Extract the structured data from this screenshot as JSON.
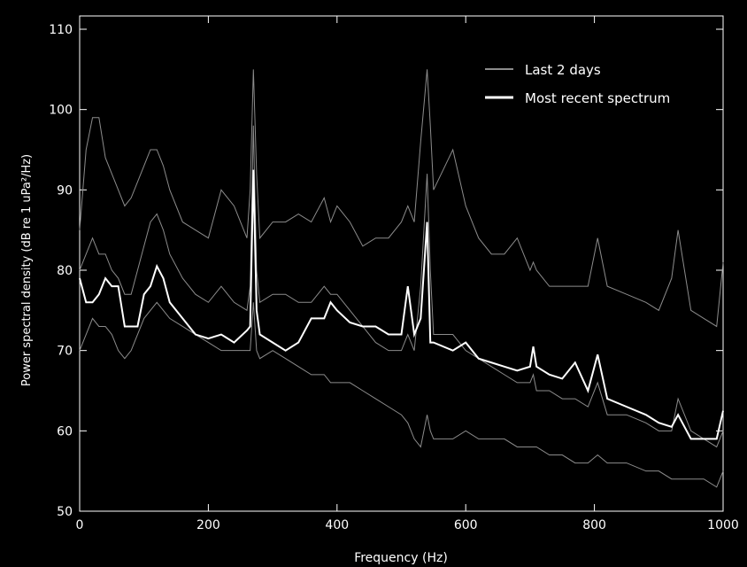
{
  "chart_data": {
    "type": "line",
    "x_label": "Frequency (Hz)",
    "y_label": "Power spectral density (dB re 1 uPa²/Hz)",
    "xlim": [
      0,
      1000
    ],
    "ylim": [
      50,
      110
    ],
    "xticks": [
      0,
      200,
      400,
      600,
      800,
      1000
    ],
    "yticks": [
      50,
      60,
      70,
      80,
      90,
      100,
      110
    ],
    "legend": "upper right",
    "x": [
      0,
      10,
      20,
      30,
      40,
      50,
      60,
      70,
      80,
      90,
      100,
      110,
      120,
      130,
      140,
      160,
      180,
      200,
      220,
      240,
      260,
      265,
      270,
      275,
      280,
      300,
      320,
      340,
      360,
      380,
      390,
      400,
      420,
      440,
      460,
      480,
      500,
      510,
      520,
      530,
      540,
      545,
      550,
      580,
      600,
      620,
      640,
      660,
      680,
      700,
      705,
      710,
      730,
      750,
      770,
      790,
      805,
      820,
      850,
      880,
      900,
      920,
      930,
      950,
      970,
      990,
      1000
    ],
    "series": [
      {
        "name": "Last 2 days",
        "color": "#8c8c8c",
        "width": 1,
        "values": [
          85,
          95,
          99,
          99,
          94,
          92,
          90,
          88,
          89,
          91,
          93,
          95,
          95,
          93,
          90,
          86,
          85,
          84,
          90,
          88,
          84,
          90,
          105,
          92,
          84,
          86,
          86,
          87,
          86,
          89,
          86,
          88,
          86,
          83,
          84,
          84,
          86,
          88,
          86,
          96,
          105,
          98,
          90,
          95,
          88,
          84,
          82,
          82,
          84,
          80,
          81,
          80,
          78,
          78,
          78,
          78,
          84,
          78,
          77,
          76,
          75,
          79,
          85,
          75,
          74,
          73,
          81
        ]
      },
      {
        "name": "Last 2 days",
        "color": "#8c8c8c",
        "width": 1,
        "values": [
          70,
          72,
          74,
          73,
          73,
          72,
          70,
          69,
          70,
          72,
          74,
          75,
          76,
          75,
          74,
          73,
          72,
          71,
          70,
          70,
          70,
          70,
          76,
          70,
          69,
          70,
          69,
          68,
          67,
          67,
          66,
          66,
          66,
          65,
          64,
          63,
          62,
          61,
          59,
          58,
          62,
          60,
          59,
          59,
          60,
          59,
          59,
          59,
          58,
          58,
          58,
          58,
          57,
          57,
          56,
          56,
          57,
          56,
          56,
          55,
          55,
          54,
          54,
          54,
          54,
          53,
          55
        ]
      },
      {
        "name": "Last 2 days",
        "color": "#8c8c8c",
        "width": 1,
        "values": [
          80,
          82,
          84,
          82,
          82,
          80,
          79,
          77,
          77,
          80,
          83,
          86,
          87,
          85,
          82,
          79,
          77,
          76,
          78,
          76,
          75,
          78,
          98,
          80,
          76,
          77,
          77,
          76,
          76,
          78,
          77,
          77,
          75,
          73,
          71,
          70,
          70,
          72,
          70,
          78,
          92,
          80,
          72,
          72,
          70,
          69,
          68,
          67,
          66,
          66,
          67,
          65,
          65,
          64,
          64,
          63,
          66,
          62,
          62,
          61,
          60,
          60,
          64,
          60,
          59,
          58,
          60
        ]
      },
      {
        "name": "Most recent spectrum",
        "color": "#ffffff",
        "width": 2,
        "values": [
          79,
          76,
          76,
          77,
          79,
          78,
          78,
          73,
          73,
          73,
          77,
          78,
          80.5,
          79,
          76,
          74,
          72,
          71.5,
          72,
          71,
          72.5,
          73,
          92.5,
          75,
          72,
          71,
          70,
          71,
          74,
          74,
          76,
          75,
          73.5,
          73,
          73,
          72,
          72,
          78,
          72,
          74,
          86,
          71,
          71,
          70,
          71,
          69,
          68.5,
          68,
          67.5,
          68,
          70.5,
          68,
          67,
          66.5,
          68.5,
          65,
          69.5,
          64,
          63,
          62,
          61,
          60.5,
          62,
          59,
          59,
          59,
          62.5
        ]
      }
    ]
  }
}
